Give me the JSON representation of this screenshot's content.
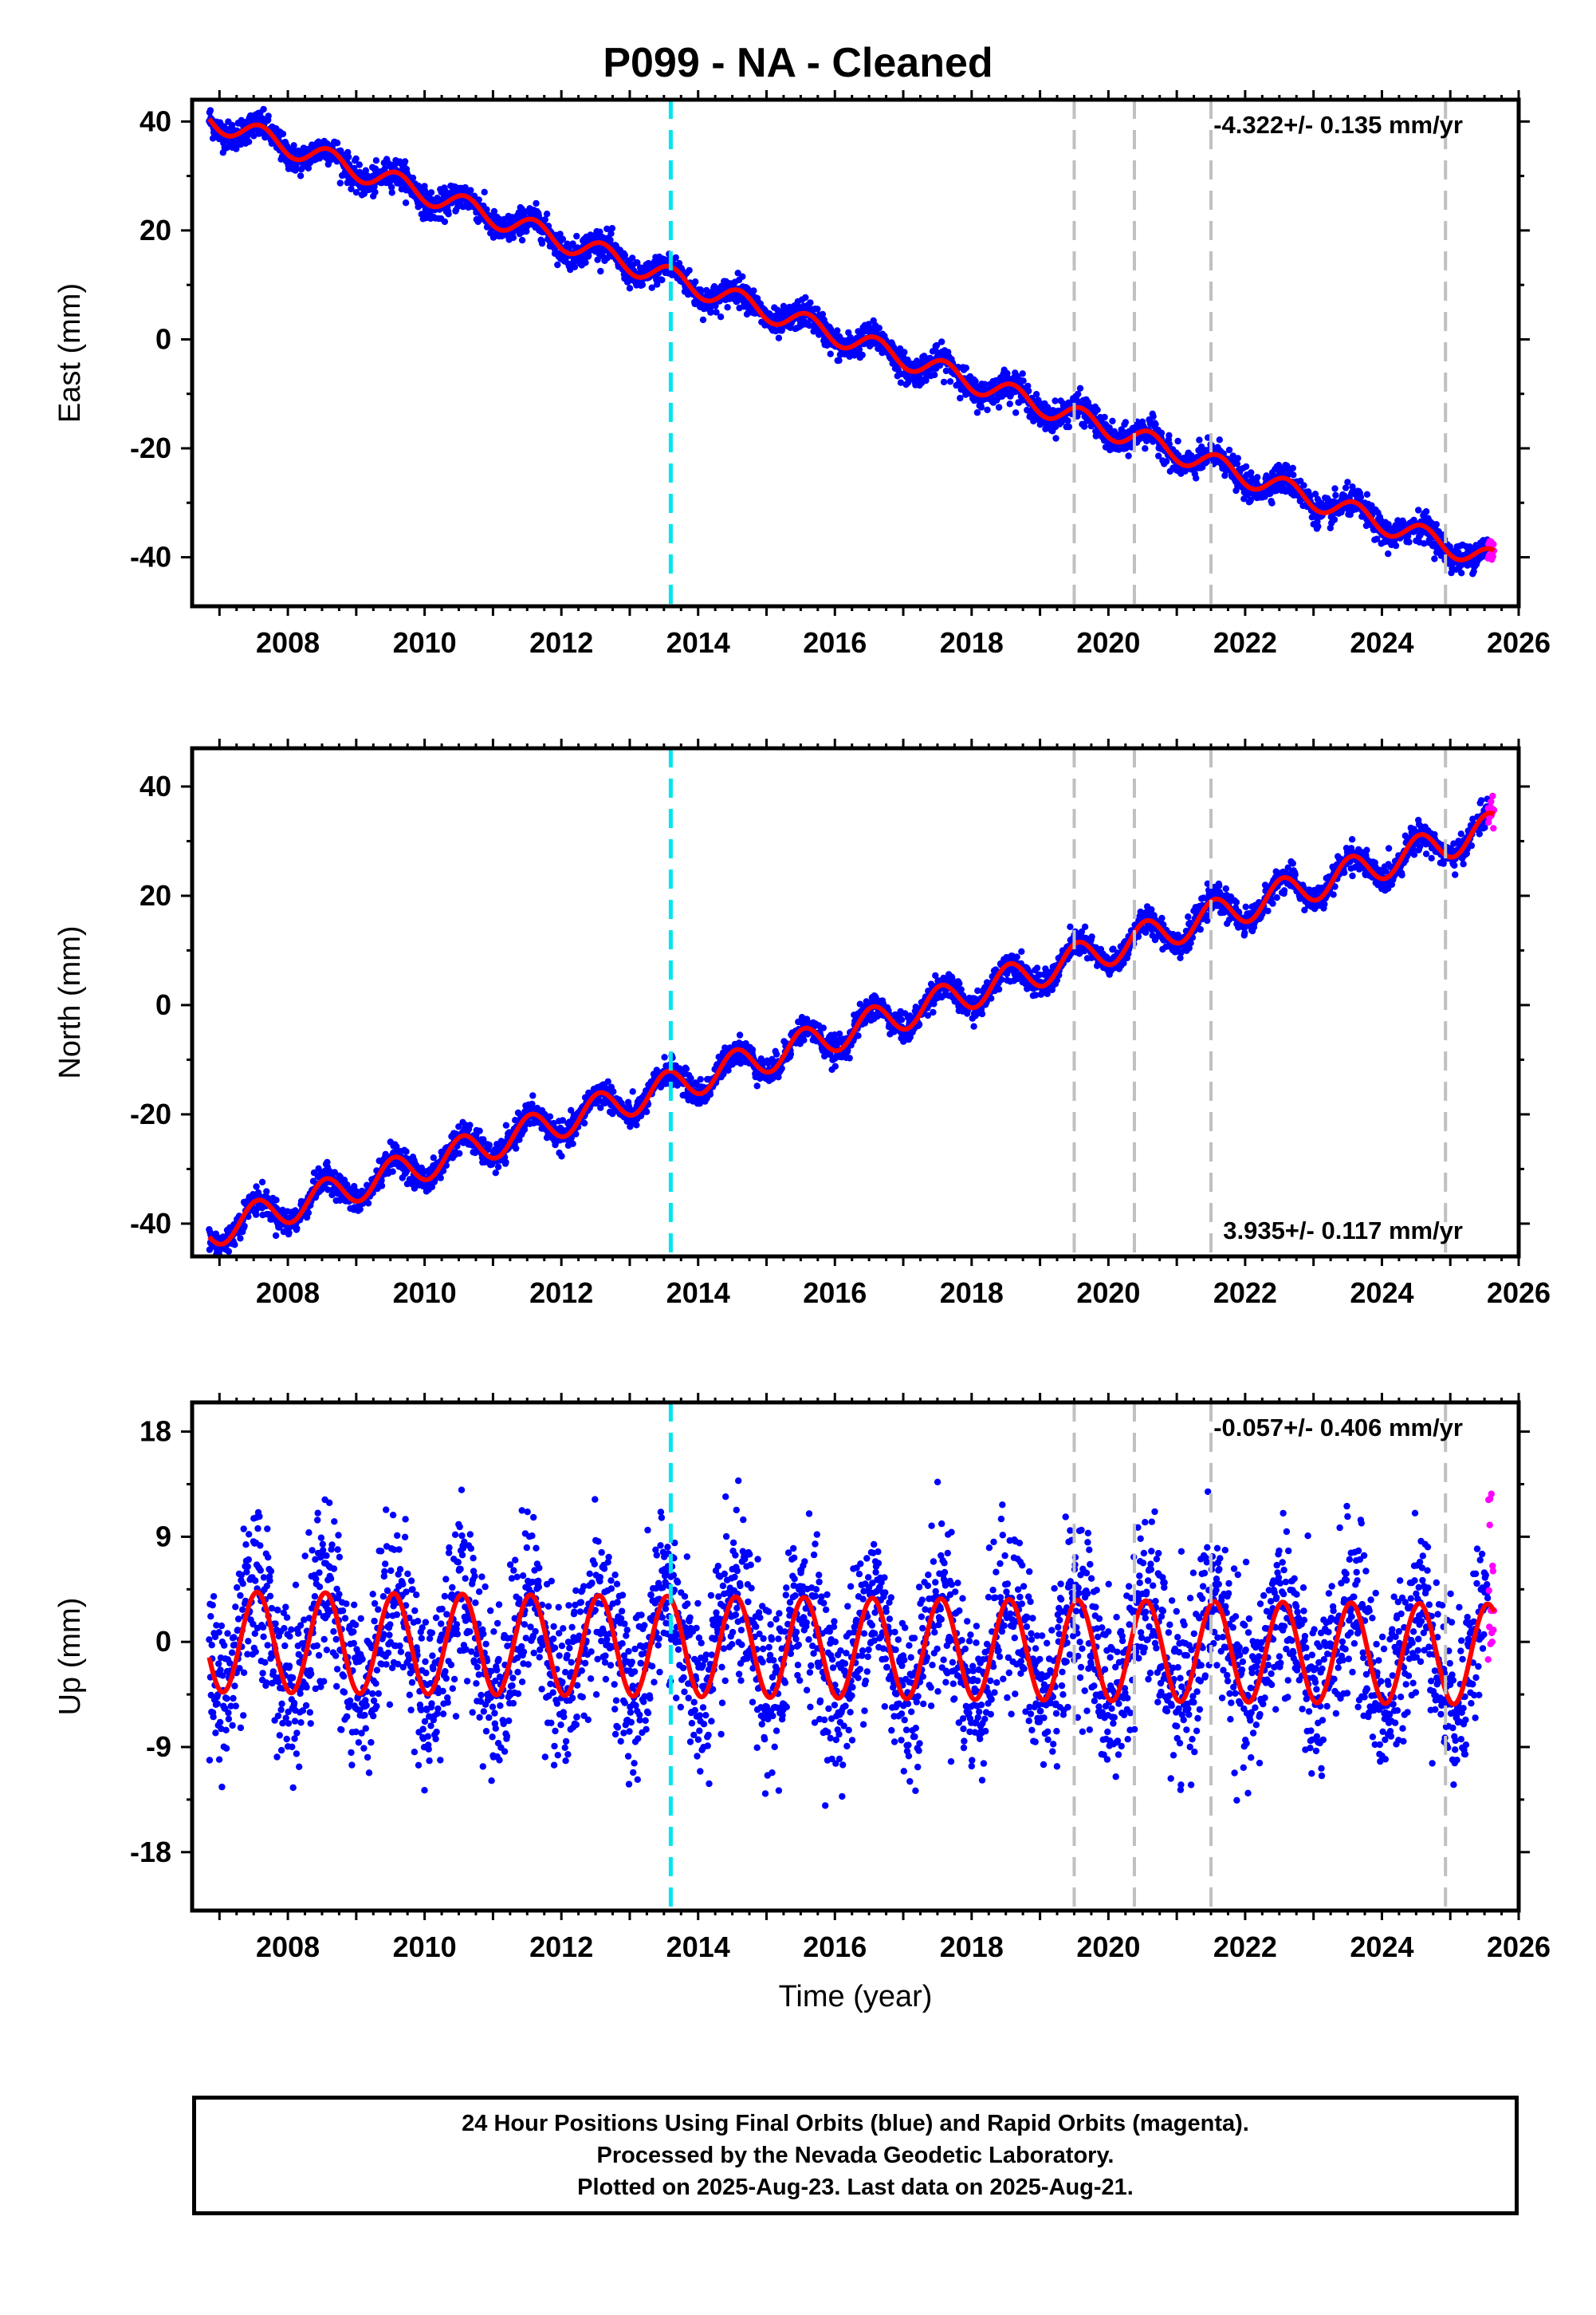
{
  "title": "P099  - NA - Cleaned",
  "colors": {
    "final_orbits": "#0000ff",
    "rapid_orbits": "#ff00ff",
    "model": "#ff0000",
    "antenna_change": "#00e5ee",
    "other_event": "#c0c0c0",
    "frame": "#000000"
  },
  "chart_data": [
    {
      "type": "scatter",
      "component": "east",
      "ylabel": "East (mm)",
      "xlim": [
        2006.6,
        2026.0
      ],
      "ylim": [
        -49,
        44
      ],
      "yticks": [
        40,
        20,
        0,
        -20,
        -40
      ],
      "xticks": [
        2008,
        2010,
        2012,
        2014,
        2016,
        2018,
        2020,
        2022,
        2024,
        2026
      ],
      "rate_text": "-4.322+/- 0.135 mm/yr",
      "rate_position": "top-right",
      "trend": {
        "t0": 2006.85,
        "y0": 40.5,
        "rate": -4.322
      },
      "seasonal": {
        "amplitude": 2.0,
        "phase_year": 0.6
      },
      "noise": 1.3,
      "start": 2006.85,
      "end": 2025.55,
      "rapid_end": 2025.64,
      "event_lines": {
        "antenna": [
          2013.6
        ],
        "other": [
          2019.5,
          2020.38,
          2021.5,
          2024.93
        ]
      }
    },
    {
      "type": "scatter",
      "component": "north",
      "ylabel": "North (mm)",
      "xlim": [
        2006.6,
        2026.0
      ],
      "ylim": [
        -46,
        47
      ],
      "yticks": [
        40,
        20,
        0,
        -20,
        -40
      ],
      "xticks": [
        2008,
        2010,
        2012,
        2014,
        2016,
        2018,
        2020,
        2022,
        2024,
        2026
      ],
      "rate_text": "3.935+/- 0.117 mm/yr",
      "rate_position": "bottom-right",
      "trend": {
        "t0": 2006.85,
        "y0": -41.5,
        "rate": 3.935
      },
      "seasonal": {
        "amplitude": 3.0,
        "phase_year": 0.55
      },
      "noise": 1.2,
      "start": 2006.85,
      "end": 2025.55,
      "rapid_end": 2025.64,
      "event_lines": {
        "antenna": [
          2013.6
        ],
        "other": [
          2019.5,
          2020.38,
          2021.5,
          2024.93
        ]
      }
    },
    {
      "type": "scatter",
      "component": "up",
      "ylabel": "Up (mm)",
      "xlim": [
        2006.6,
        2026.0
      ],
      "ylim": [
        -23,
        20.5
      ],
      "yticks": [
        18,
        9,
        0,
        -9,
        -18
      ],
      "xticks": [
        2008,
        2010,
        2012,
        2014,
        2016,
        2018,
        2020,
        2022,
        2024,
        2026
      ],
      "xlabel": "Time (year)",
      "rate_text": "-0.057+/- 0.406 mm/yr",
      "rate_position": "top-right",
      "trend": {
        "t0": 2006.85,
        "y0": 0.0,
        "rate": -0.057
      },
      "seasonal": {
        "amplitude": 4.3,
        "phase_year": 0.55
      },
      "noise": 3.6,
      "start": 2006.85,
      "end": 2025.55,
      "rapid_end": 2025.64,
      "event_lines": {
        "antenna": [
          2013.6
        ],
        "other": [
          2019.5,
          2020.38,
          2021.5,
          2024.93
        ]
      }
    }
  ],
  "caption": {
    "line1": "24 Hour Positions Using Final Orbits (blue) and Rapid Orbits (magenta).",
    "line2": "Processed by the Nevada Geodetic Laboratory.",
    "line3": "Plotted on 2025-Aug-23. Last data on 2025-Aug-21."
  }
}
